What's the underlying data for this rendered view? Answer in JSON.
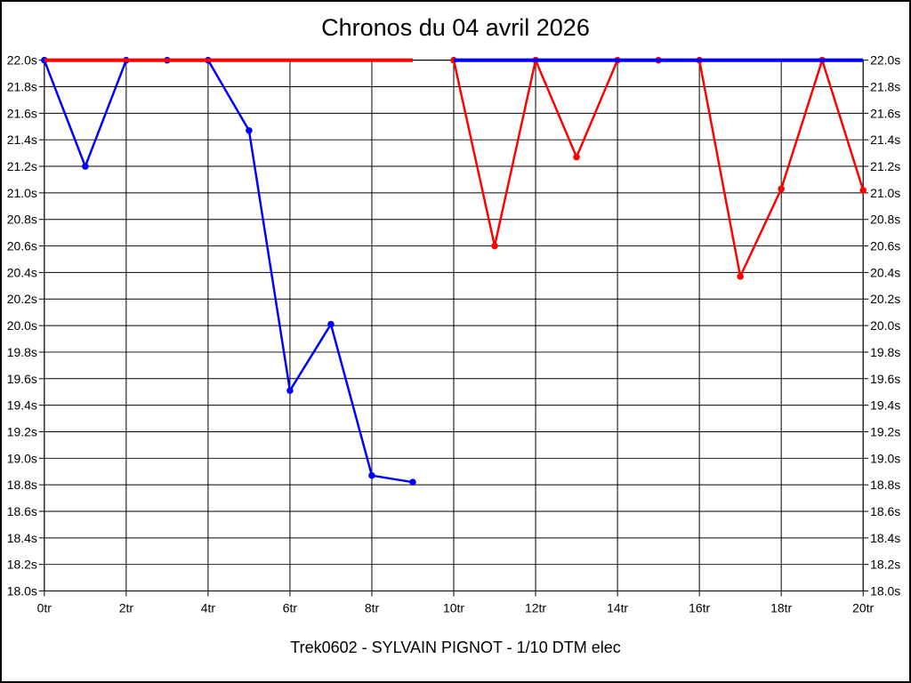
{
  "title": "Chronos du 04 avril 2026",
  "subtitle": "Trek0602 - SYLVAIN PIGNOT - 1/10 DTM elec",
  "colors": {
    "series_blue": "#0000ff",
    "series_red": "#ff0000",
    "grid": "#000000",
    "background": "#ffffff",
    "frame": "#000000"
  },
  "chart_data": {
    "type": "line",
    "title": "Chronos du 04 avril 2026",
    "footer": "Trek0602 - SYLVAIN PIGNOT - 1/10 DTM elec",
    "grid": true,
    "legend": "none",
    "y_axis_labels_on_both_sides": true,
    "x_axis": {
      "unit": "tr",
      "min": 0,
      "max": 20,
      "tick_step": 2,
      "tick_labels": [
        "0tr",
        "2tr",
        "4tr",
        "6tr",
        "8tr",
        "10tr",
        "12tr",
        "14tr",
        "16tr",
        "18tr",
        "20tr"
      ]
    },
    "y_axis": {
      "unit": "s",
      "min": 18.0,
      "max": 22.0,
      "step": 0.2,
      "tick_labels": [
        "22.0s",
        "21.8s",
        "21.6s",
        "21.4s",
        "21.2s",
        "21.0s",
        "20.8s",
        "20.6s",
        "20.4s",
        "20.2s",
        "20.0s",
        "19.8s",
        "19.6s",
        "19.4s",
        "19.2s",
        "19.0s",
        "18.8s",
        "18.6s",
        "18.4s",
        "18.2s",
        "18.0s"
      ]
    },
    "series": [
      {
        "name": "blue",
        "color": "#0000ff",
        "segments": [
          {
            "x": [
              0,
              1,
              2,
              3,
              4,
              5,
              6,
              7,
              8,
              9
            ],
            "y": [
              22.0,
              21.2,
              22.0,
              22.0,
              22.0,
              21.47,
              19.51,
              20.01,
              18.87,
              18.82
            ]
          },
          {
            "x": [
              10,
              11,
              12,
              13,
              14,
              15,
              16,
              17,
              18,
              19,
              20
            ],
            "y": [
              22.0,
              22.0,
              22.0,
              22.0,
              22.0,
              22.0,
              22.0,
              22.0,
              22.0,
              22.0,
              22.0
            ]
          }
        ]
      },
      {
        "name": "red",
        "color": "#ff0000",
        "segments": [
          {
            "x": [
              0,
              1,
              2,
              3,
              4,
              5,
              6,
              7,
              8,
              9
            ],
            "y": [
              22.0,
              22.0,
              22.0,
              22.0,
              22.0,
              22.0,
              22.0,
              22.0,
              22.0,
              22.0
            ]
          },
          {
            "x": [
              10,
              11,
              12,
              13,
              14,
              15,
              16,
              17,
              18,
              19,
              20
            ],
            "y": [
              22.0,
              20.6,
              22.0,
              21.27,
              22.0,
              22.0,
              22.0,
              20.37,
              21.03,
              22.0,
              21.02
            ]
          }
        ]
      }
    ]
  }
}
